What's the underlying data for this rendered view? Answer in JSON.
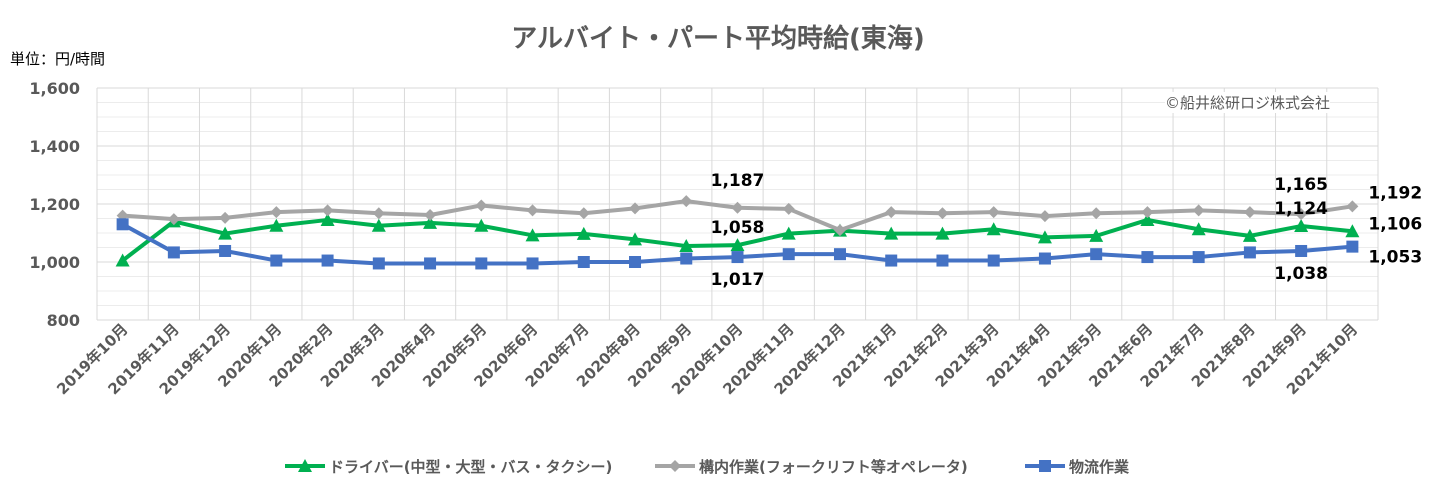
{
  "chart_data": {
    "type": "line",
    "title": "アルバイト・パート平均時給(東海)",
    "unit_label": "単位：円/時間",
    "copyright": "©船井総研ロジ株式会社",
    "ylim": [
      800,
      1600
    ],
    "yticks": [
      "800",
      "1,000",
      "1,200",
      "1,400",
      "1,600"
    ],
    "ytick_values": [
      800,
      1000,
      1200,
      1400,
      1600
    ],
    "grid": true,
    "legend_position": "bottom",
    "categories": [
      "2019年10月",
      "2019年11月",
      "2019年12月",
      "2020年1月",
      "2020年2月",
      "2020年3月",
      "2020年4月",
      "2020年5月",
      "2020年6月",
      "2020年7月",
      "2020年8月",
      "2020年9月",
      "2020年10月",
      "2020年11月",
      "2020年12月",
      "2021年1月",
      "2021年2月",
      "2021年3月",
      "2021年4月",
      "2021年5月",
      "2021年6月",
      "2021年7月",
      "2021年8月",
      "2021年9月",
      "2021年10月"
    ],
    "series": [
      {
        "name": "ドライバー(中型・大型・バス・タクシー)",
        "color": "#00b050",
        "marker": "triangle",
        "values": [
          1005,
          1140,
          1098,
          1125,
          1145,
          1125,
          1135,
          1125,
          1092,
          1097,
          1078,
          1055,
          1058,
          1098,
          1108,
          1098,
          1098,
          1113,
          1085,
          1090,
          1145,
          1113,
          1090,
          1124,
          1106
        ]
      },
      {
        "name": "構内作業(フォークリフト等オペレータ)",
        "color": "#a5a5a5",
        "marker": "diamond",
        "values": [
          1160,
          1148,
          1152,
          1172,
          1178,
          1168,
          1162,
          1195,
          1178,
          1168,
          1185,
          1210,
          1187,
          1183,
          1110,
          1172,
          1168,
          1172,
          1158,
          1168,
          1172,
          1178,
          1172,
          1165,
          1192
        ]
      },
      {
        "name": "物流作業",
        "color": "#4472c4",
        "marker": "square",
        "values": [
          1130,
          1033,
          1038,
          1005,
          1005,
          995,
          995,
          995,
          995,
          1000,
          1000,
          1012,
          1017,
          1027,
          1027,
          1005,
          1005,
          1005,
          1012,
          1027,
          1017,
          1017,
          1033,
          1038,
          1053
        ]
      }
    ],
    "data_labels": [
      {
        "series": 1,
        "index": 12,
        "text": "1,187"
      },
      {
        "series": 0,
        "index": 12,
        "text": "1,058"
      },
      {
        "series": 2,
        "index": 12,
        "text": "1,017"
      },
      {
        "series": 1,
        "index": 23,
        "text": "1,165"
      },
      {
        "series": 0,
        "index": 23,
        "text": "1,124"
      },
      {
        "series": 2,
        "index": 23,
        "text": "1,038"
      },
      {
        "series": 1,
        "index": 24,
        "text": "1,192"
      },
      {
        "series": 0,
        "index": 24,
        "text": "1,106"
      },
      {
        "series": 2,
        "index": 24,
        "text": "1,053"
      }
    ]
  }
}
